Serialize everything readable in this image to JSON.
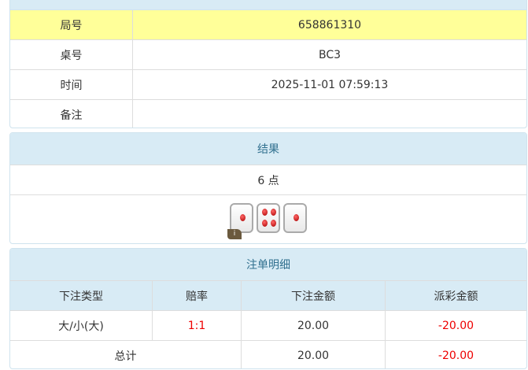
{
  "info": {
    "rows": [
      {
        "label": "局号",
        "value": "658861310"
      },
      {
        "label": "桌号",
        "value": "BC3"
      },
      {
        "label": "时间",
        "value": "2025-11-01 07:59:13"
      },
      {
        "label": "备注",
        "value": ""
      }
    ]
  },
  "result": {
    "title": "结果",
    "points": "6 点",
    "dice": [
      1,
      4,
      1
    ],
    "info_badge": "i"
  },
  "bets": {
    "title": "注单明细",
    "headers": [
      "下注类型",
      "赔率",
      "下注金额",
      "派彩金额"
    ],
    "rows": [
      {
        "type": "大/小(大)",
        "odds": "1:1",
        "amount": "20.00",
        "payout": "-20.00"
      }
    ],
    "total": {
      "label": "总计",
      "amount": "20.00",
      "payout": "-20.00"
    }
  },
  "colors": {
    "header_bg": "#d8ebf5",
    "highlight_bg": "#ffff99",
    "negative": "#e00000"
  }
}
